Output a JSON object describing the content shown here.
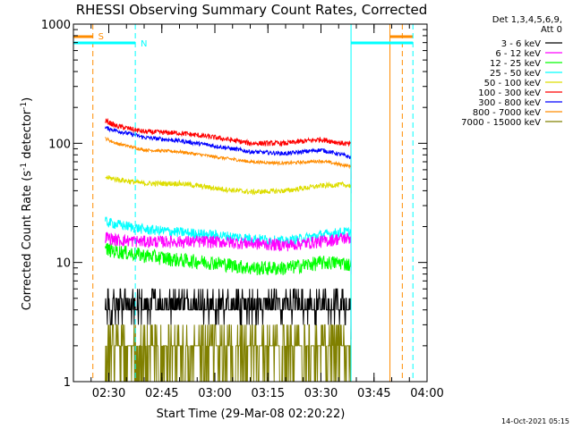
{
  "chart_data": {
    "type": "line",
    "title": "RHESSI Observing Summary Count Rates, Corrected",
    "xlabel": "Start Time (29-Mar-08 02:20:22)",
    "ylabel_main": "Corrected Count Rate (s",
    "ylabel_sup1": "-1",
    "ylabel_mid": " detector",
    "ylabel_sup2": "-1",
    "ylabel_end": ")",
    "y_scale": "log",
    "ylim": [
      1,
      1000
    ],
    "xlim_minutes": [
      0,
      100
    ],
    "x_ticks": [
      {
        "minute": 10,
        "label": "02:30"
      },
      {
        "minute": 25,
        "label": "02:45"
      },
      {
        "minute": 40,
        "label": "03:00"
      },
      {
        "minute": 55,
        "label": "03:15"
      },
      {
        "minute": 70,
        "label": "03:30"
      },
      {
        "minute": 85,
        "label": "03:45"
      },
      {
        "minute": 100,
        "label": "04:00"
      }
    ],
    "y_ticks": [
      {
        "value": 1,
        "label": "1"
      },
      {
        "value": 10,
        "label": "10"
      },
      {
        "value": 100,
        "label": "100"
      },
      {
        "value": 1000,
        "label": "1000"
      }
    ],
    "legend_header": [
      "Det 1,3,4,5,6,9,",
      "Att 0"
    ],
    "series": [
      {
        "name": "3 - 6 keV",
        "color": "#000000",
        "x": [
          9,
          12,
          20,
          30,
          40,
          50,
          60,
          70,
          76,
          78.5
        ],
        "y": [
          4,
          4.3,
          4.5,
          4.8,
          4.7,
          4.5,
          4.5,
          4.6,
          4.5,
          4.5
        ]
      },
      {
        "name": "6 - 12 keV",
        "color": "#ff00ff",
        "x": [
          9,
          12,
          20,
          30,
          40,
          50,
          60,
          70,
          76,
          78.5
        ],
        "y": [
          16.5,
          15.5,
          15,
          15,
          15,
          14.5,
          14,
          15,
          16,
          16
        ]
      },
      {
        "name": "12 - 25 keV",
        "color": "#00ff00",
        "x": [
          9,
          12,
          20,
          30,
          40,
          50,
          60,
          70,
          76,
          78.5
        ],
        "y": [
          13,
          12.5,
          11.5,
          10.5,
          10,
          9,
          9,
          10,
          10,
          9.5
        ]
      },
      {
        "name": "25 - 50 keV",
        "color": "#00ffff",
        "x": [
          9,
          12,
          20,
          30,
          40,
          50,
          60,
          70,
          76,
          78.5
        ],
        "y": [
          22,
          21,
          19,
          18,
          17,
          16,
          15,
          17,
          18,
          18
        ]
      },
      {
        "name": "50 - 100 keV",
        "color": "#dddd00",
        "x": [
          9,
          12,
          20,
          30,
          40,
          50,
          60,
          70,
          76,
          78.5
        ],
        "y": [
          52,
          50,
          46,
          46,
          42,
          39,
          40,
          44,
          45,
          44
        ]
      },
      {
        "name": "100 - 300 keV",
        "color": "#ff0000",
        "x": [
          9,
          12,
          20,
          30,
          40,
          50,
          60,
          70,
          76,
          78.5
        ],
        "y": [
          155,
          140,
          125,
          122,
          112,
          100,
          100,
          108,
          100,
          98
        ]
      },
      {
        "name": "300 - 800 keV",
        "color": "#0000ff",
        "x": [
          9,
          12,
          20,
          30,
          40,
          50,
          60,
          70,
          76,
          78.5
        ],
        "y": [
          135,
          128,
          112,
          105,
          95,
          85,
          82,
          88,
          80,
          76
        ]
      },
      {
        "name": "800 - 7000 keV",
        "color": "#ff8c00",
        "x": [
          9,
          12,
          20,
          30,
          40,
          50,
          60,
          70,
          76,
          78.5
        ],
        "y": [
          110,
          100,
          88,
          85,
          77,
          70,
          68,
          71,
          66,
          64
        ]
      },
      {
        "name": "7000 - 15000 keV",
        "color": "#808000",
        "x": [
          9,
          12,
          20,
          30,
          40,
          50,
          60,
          70,
          76,
          78.5
        ],
        "y": [
          2,
          2,
          2,
          2.2,
          2.2,
          2,
          2,
          2.3,
          2.5,
          2.5
        ]
      }
    ],
    "annotations": {
      "S": {
        "label": "S",
        "color": "#ff8c00"
      },
      "N": {
        "label": "N",
        "color": "#00ffff"
      }
    },
    "footer_date": "14-Oct-2021 05:15"
  }
}
